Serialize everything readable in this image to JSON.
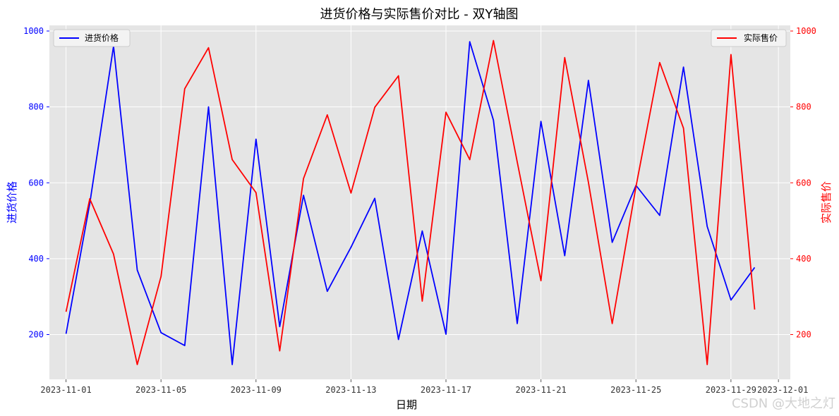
{
  "chart_data": {
    "type": "line",
    "title": "进货价格与实际售价对比 - 双Y轴图",
    "xlabel": "日期",
    "x": [
      "2023-11-01",
      "2023-11-02",
      "2023-11-03",
      "2023-11-04",
      "2023-11-05",
      "2023-11-06",
      "2023-11-07",
      "2023-11-08",
      "2023-11-09",
      "2023-11-10",
      "2023-11-11",
      "2023-11-12",
      "2023-11-13",
      "2023-11-14",
      "2023-11-15",
      "2023-11-16",
      "2023-11-17",
      "2023-11-18",
      "2023-11-19",
      "2023-11-20",
      "2023-11-21",
      "2023-11-22",
      "2023-11-23",
      "2023-11-24",
      "2023-11-25",
      "2023-11-26",
      "2023-11-27",
      "2023-11-28",
      "2023-11-29",
      "2023-11-30"
    ],
    "x_ticks": [
      "2023-11-01",
      "2023-11-05",
      "2023-11-09",
      "2023-11-13",
      "2023-11-17",
      "2023-11-21",
      "2023-11-25",
      "2023-11-29",
      "2023-12-01"
    ],
    "x_range": [
      "2023-10-30",
      "2023-12-01"
    ],
    "grid": true,
    "left_axis": {
      "label": "进货价格",
      "color": "#0000ff",
      "ylim": [
        82,
        1000
      ],
      "ticks": [
        200,
        400,
        600,
        800,
        1000
      ]
    },
    "right_axis": {
      "label": "实际售价",
      "color": "#ff0000",
      "ylim": [
        82,
        1000
      ],
      "ticks": [
        200,
        400,
        600,
        800,
        1000
      ]
    },
    "series": [
      {
        "name": "进货价格",
        "axis": "left",
        "color": "#0000ff",
        "legend_position": "top-left",
        "values": [
          202,
          545,
          960,
          370,
          205,
          171,
          800,
          121,
          715,
          221,
          567,
          314,
          430,
          559,
          187,
          473,
          201,
          972,
          765,
          229,
          762,
          408,
          870,
          443,
          593,
          514,
          905,
          485,
          291,
          377
        ]
      },
      {
        "name": "实际售价",
        "axis": "right",
        "color": "#ff0000",
        "legend_position": "top-right",
        "values": [
          260,
          558,
          412,
          121,
          353,
          848,
          956,
          661,
          574,
          157,
          611,
          779,
          573,
          799,
          882,
          288,
          786,
          661,
          975,
          655,
          342,
          930,
          601,
          229,
          590,
          917,
          744,
          121,
          938,
          266
        ]
      }
    ]
  },
  "watermark": "CSDN @大地之灯"
}
